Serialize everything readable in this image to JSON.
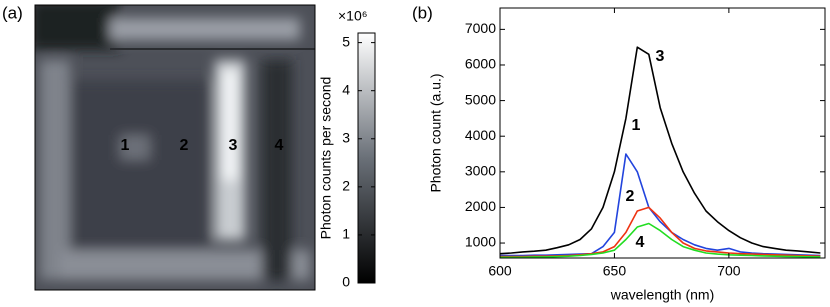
{
  "chart_data": [
    {
      "type": "image",
      "panel": "(a)",
      "annotations": [
        {
          "text": "1",
          "color": "#2244dd"
        },
        {
          "text": "2",
          "color": "#ee3311"
        },
        {
          "text": "3",
          "color": "#000000"
        },
        {
          "text": "4",
          "color": "#22dd22"
        }
      ],
      "colorbar": {
        "label": "Photon counts per second",
        "multiplier": "×10⁶",
        "ylim": [
          0,
          5.2
        ],
        "yticks": [
          0,
          1,
          2,
          3,
          4,
          5
        ]
      }
    },
    {
      "type": "line",
      "panel": "(b)",
      "xlabel": "wavelength (nm)",
      "ylabel": "Photon count (a.u.)",
      "x": [
        600,
        605,
        610,
        615,
        620,
        625,
        630,
        635,
        640,
        645,
        650,
        655,
        660,
        665,
        670,
        675,
        680,
        685,
        690,
        695,
        700,
        705,
        710,
        715,
        720,
        725,
        730,
        735,
        740
      ],
      "xlim": [
        600,
        742
      ],
      "xticks": [
        600,
        650,
        700
      ],
      "ylim": [
        580,
        7600
      ],
      "yticks": [
        1000,
        2000,
        3000,
        4000,
        5000,
        6000,
        7000
      ],
      "series": [
        {
          "name": "3",
          "color": "#000000",
          "values": [
            700,
            720,
            750,
            770,
            800,
            870,
            950,
            1100,
            1400,
            2000,
            3000,
            4500,
            6500,
            6300,
            4800,
            3800,
            3000,
            2400,
            1900,
            1600,
            1350,
            1150,
            1000,
            900,
            850,
            800,
            780,
            750,
            720
          ]
        },
        {
          "name": "1",
          "color": "#2244dd",
          "values": [
            650,
            650,
            650,
            660,
            660,
            670,
            680,
            690,
            700,
            900,
            1300,
            3500,
            3000,
            2000,
            1600,
            1300,
            1100,
            950,
            850,
            800,
            850,
            750,
            720,
            700,
            690,
            680,
            670,
            660,
            650
          ]
        },
        {
          "name": "2",
          "color": "#ee3311",
          "values": [
            620,
            620,
            620,
            630,
            630,
            640,
            650,
            670,
            700,
            750,
            900,
            1300,
            1900,
            2000,
            1700,
            1300,
            1000,
            850,
            780,
            750,
            720,
            700,
            690,
            680,
            670,
            660,
            650,
            640,
            630
          ]
        },
        {
          "name": "4",
          "color": "#22dd22",
          "values": [
            600,
            600,
            600,
            610,
            610,
            620,
            630,
            650,
            680,
            720,
            800,
            1100,
            1450,
            1550,
            1350,
            1100,
            900,
            800,
            720,
            690,
            670,
            660,
            650,
            640,
            630,
            625,
            620,
            615,
            610
          ]
        }
      ]
    }
  ]
}
